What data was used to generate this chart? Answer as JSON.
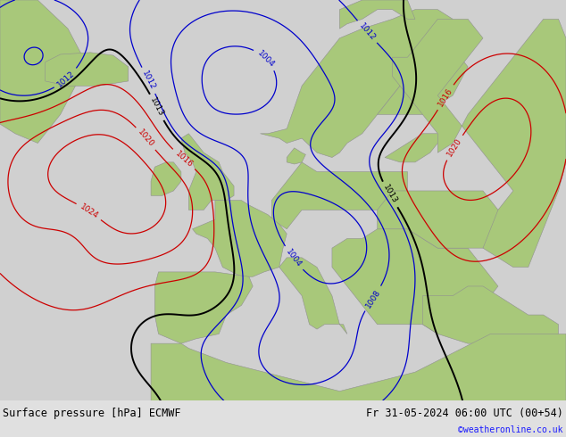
{
  "title_left": "Surface pressure [hPa] ECMWF",
  "title_right": "Fr 31-05-2024 06:00 UTC (00+54)",
  "credit": "©weatheronline.co.uk",
  "ocean_color": "#d0d0d0",
  "land_color": "#a8c87a",
  "border_color": "#909090",
  "black_contour_color": "#000000",
  "blue_contour_color": "#0000cc",
  "red_contour_color": "#cc0000",
  "label_fontsize": 6.5,
  "title_fontsize": 8.5,
  "credit_fontsize": 7,
  "bottom_bg": "#e0e0e0",
  "lon_min": -30,
  "lon_max": 45,
  "lat_min": 30,
  "lat_max": 72,
  "gaussians": [
    {
      "lon0": -15,
      "lat0": 53,
      "val": 16,
      "slon": 11,
      "slat": 8
    },
    {
      "lon0": 0,
      "lat0": 63,
      "val": -13,
      "slon": 9,
      "slat": 6
    },
    {
      "lon0": -20,
      "lat0": 48,
      "val": -4,
      "slon": 4,
      "slat": 3
    },
    {
      "lon0": 28,
      "lat0": 53,
      "val": 8,
      "slon": 10,
      "slat": 7
    },
    {
      "lon0": 15,
      "lat0": 47,
      "val": -14,
      "slon": 7,
      "slat": 5
    },
    {
      "lon0": 5,
      "lat0": 51,
      "val": -6,
      "slon": 5,
      "slat": 4
    },
    {
      "lon0": -5,
      "lat0": 58,
      "val": -4,
      "slon": 4,
      "slat": 3
    },
    {
      "lon0": 10,
      "lat0": 35,
      "val": -7,
      "slon": 7,
      "slat": 4
    },
    {
      "lon0": 38,
      "lat0": 60,
      "val": 5,
      "slon": 5,
      "slat": 5
    },
    {
      "lon0": -10,
      "lat0": 40,
      "val": -3,
      "slon": 5,
      "slat": 4
    },
    {
      "lon0": 20,
      "lat0": 60,
      "val": -5,
      "slon": 6,
      "slat": 4
    },
    {
      "lon0": -25,
      "lat0": 65,
      "val": -8,
      "slon": 5,
      "slat": 4
    }
  ]
}
